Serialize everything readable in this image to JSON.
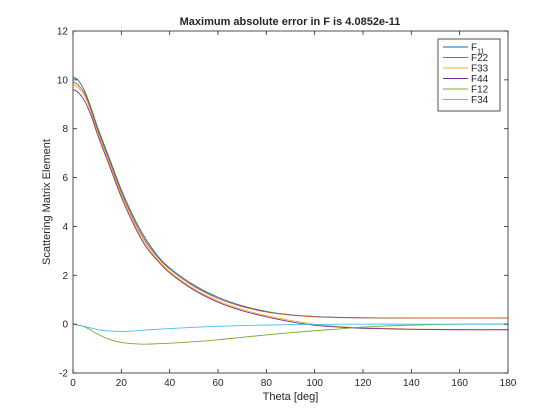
{
  "chart_data": {
    "type": "line",
    "title": "Maximum absolute error in F is 4.0852e-11",
    "xlabel": "Theta [deg]",
    "ylabel": "Scattering Matrix Element",
    "xlim": [
      0,
      180
    ],
    "ylim": [
      -2,
      12
    ],
    "xticks": [
      0,
      20,
      40,
      60,
      80,
      100,
      120,
      140,
      160,
      180
    ],
    "yticks": [
      -2,
      0,
      2,
      4,
      6,
      8,
      10,
      12
    ],
    "grid": false,
    "legend_position": "top-right",
    "series": [
      {
        "name": "F11",
        "name_main": "F",
        "name_sub": "11",
        "color": "#0072bd",
        "x": [
          0,
          2,
          5,
          8,
          10,
          15,
          20,
          25,
          30,
          35,
          40,
          50,
          60,
          70,
          80,
          90,
          100,
          110,
          120,
          140,
          160,
          180
        ],
        "y": [
          10.1,
          10.0,
          9.5,
          8.7,
          8.1,
          6.8,
          5.5,
          4.4,
          3.5,
          2.8,
          2.3,
          1.6,
          1.1,
          0.75,
          0.52,
          0.38,
          0.31,
          0.28,
          0.26,
          0.25,
          0.25,
          0.25
        ]
      },
      {
        "name": "F22",
        "color": "#d95319",
        "x": [
          0,
          2,
          5,
          8,
          10,
          15,
          20,
          25,
          30,
          35,
          40,
          50,
          60,
          70,
          80,
          90,
          100,
          110,
          120,
          140,
          160,
          180
        ],
        "y": [
          9.9,
          9.8,
          9.4,
          8.6,
          8.0,
          6.7,
          5.4,
          4.3,
          3.4,
          2.75,
          2.25,
          1.55,
          1.05,
          0.72,
          0.5,
          0.37,
          0.3,
          0.27,
          0.26,
          0.25,
          0.25,
          0.25
        ]
      },
      {
        "name": "F33",
        "color": "#edb120",
        "x": [
          0,
          2,
          5,
          8,
          10,
          15,
          20,
          25,
          30,
          35,
          40,
          50,
          60,
          70,
          80,
          90,
          100,
          110,
          120,
          140,
          160,
          180
        ],
        "y": [
          9.8,
          9.7,
          9.3,
          8.5,
          7.9,
          6.6,
          5.3,
          4.2,
          3.3,
          2.65,
          2.15,
          1.45,
          0.95,
          0.6,
          0.35,
          0.15,
          0.0,
          -0.1,
          -0.15,
          -0.2,
          -0.22,
          -0.22
        ]
      },
      {
        "name": "F44",
        "color": "#7e2f8e",
        "x": [
          0,
          2,
          5,
          8,
          10,
          15,
          20,
          25,
          30,
          35,
          40,
          50,
          60,
          70,
          80,
          90,
          100,
          110,
          120,
          140,
          160,
          180
        ],
        "y": [
          9.6,
          9.5,
          9.1,
          8.4,
          7.8,
          6.5,
          5.2,
          4.1,
          3.2,
          2.6,
          2.1,
          1.4,
          0.9,
          0.55,
          0.3,
          0.1,
          -0.05,
          -0.12,
          -0.17,
          -0.21,
          -0.23,
          -0.23
        ]
      },
      {
        "name": "F12",
        "color": "#77ac30",
        "x": [
          0,
          5,
          10,
          15,
          20,
          25,
          30,
          35,
          40,
          50,
          60,
          70,
          80,
          90,
          100,
          110,
          120,
          140,
          160,
          180
        ],
        "y": [
          0.0,
          -0.12,
          -0.4,
          -0.62,
          -0.75,
          -0.8,
          -0.82,
          -0.8,
          -0.78,
          -0.72,
          -0.64,
          -0.54,
          -0.44,
          -0.35,
          -0.27,
          -0.2,
          -0.12,
          -0.04,
          0.0,
          0.0
        ]
      },
      {
        "name": "F34",
        "color": "#4dbeee",
        "x": [
          0,
          5,
          10,
          15,
          20,
          25,
          30,
          40,
          50,
          60,
          70,
          80,
          90,
          100,
          120,
          140,
          160,
          180
        ],
        "y": [
          0.0,
          -0.1,
          -0.22,
          -0.28,
          -0.3,
          -0.28,
          -0.24,
          -0.18,
          -0.13,
          -0.09,
          -0.06,
          -0.04,
          -0.02,
          -0.01,
          0.0,
          0.0,
          0.0,
          0.0
        ]
      }
    ]
  }
}
